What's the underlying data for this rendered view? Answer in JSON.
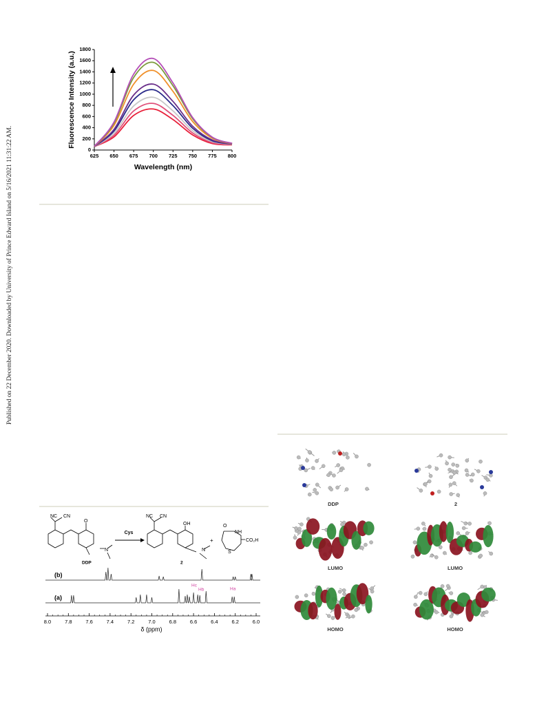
{
  "watermark": "Published on 22 December 2020. Downloaded by University of Prince Edward Island on 5/16/2021 11:31:22 AM.",
  "chart_data": {
    "type": "line",
    "xlabel": "Wavelength (nm)",
    "ylabel": "Fluorescence Intensity (a.u.)",
    "x": [
      625,
      650,
      675,
      700,
      725,
      750,
      775,
      800
    ],
    "xlim": [
      625,
      800
    ],
    "xticks": [
      625,
      650,
      675,
      700,
      725,
      750,
      775,
      800
    ],
    "ylim": [
      0,
      1800
    ],
    "yticks": [
      0,
      200,
      400,
      600,
      800,
      1000,
      1200,
      1400,
      1600,
      1800
    ],
    "series": [
      {
        "color": "#b44fb8",
        "values": [
          66,
          500,
          1360,
          1640,
          1200,
          580,
          230,
          120
        ]
      },
      {
        "color": "#7a9a3a",
        "values": [
          64,
          480,
          1300,
          1570,
          1150,
          560,
          225,
          118
        ]
      },
      {
        "color": "#f0902a",
        "values": [
          63,
          440,
          1180,
          1425,
          1050,
          510,
          210,
          115
        ]
      },
      {
        "color": "#6a2f8a",
        "values": [
          62,
          370,
          985,
          1180,
          870,
          425,
          180,
          110
        ]
      },
      {
        "color": "#2a2a8a",
        "values": [
          61,
          340,
          900,
          1080,
          795,
          390,
          165,
          108
        ]
      },
      {
        "color": "#c8c8c8",
        "values": [
          61,
          300,
          790,
          945,
          700,
          345,
          150,
          104
        ]
      },
      {
        "color": "#e0507a",
        "values": [
          60,
          265,
          700,
          835,
          620,
          305,
          130,
          98
        ]
      },
      {
        "color": "#e8203a",
        "values": [
          60,
          235,
          620,
          735,
          545,
          270,
          115,
          92
        ]
      }
    ]
  },
  "scheme": {
    "reactant": {
      "nc": "NC",
      "cn": "CN",
      "o": "O",
      "n": "N",
      "label": "DDP"
    },
    "reagent": "Cys",
    "product": {
      "nc": "NC",
      "cn": "CN",
      "oh": "OH",
      "n": "N",
      "label": "2"
    },
    "plus": "+",
    "byproduct": {
      "o": "O",
      "nh": "NH",
      "acid": "CO₂H",
      "s": "S"
    }
  },
  "nmr": {
    "traces": [
      "(b)",
      "(a)"
    ],
    "ticks": [
      "8.0",
      "7.8",
      "7.6",
      "7.4",
      "7.2",
      "7.0",
      "6.8",
      "6.6",
      "6.4",
      "6.2",
      "6.0"
    ],
    "xlabel": "δ (ppm)",
    "annotations": [
      "Hc",
      "Hb",
      "Ha"
    ]
  },
  "orbitals": {
    "structures": [
      "DDP",
      "2"
    ],
    "lumo": [
      "LUMO",
      "LUMO"
    ],
    "homo": [
      "HOMO",
      "HOMO"
    ]
  }
}
